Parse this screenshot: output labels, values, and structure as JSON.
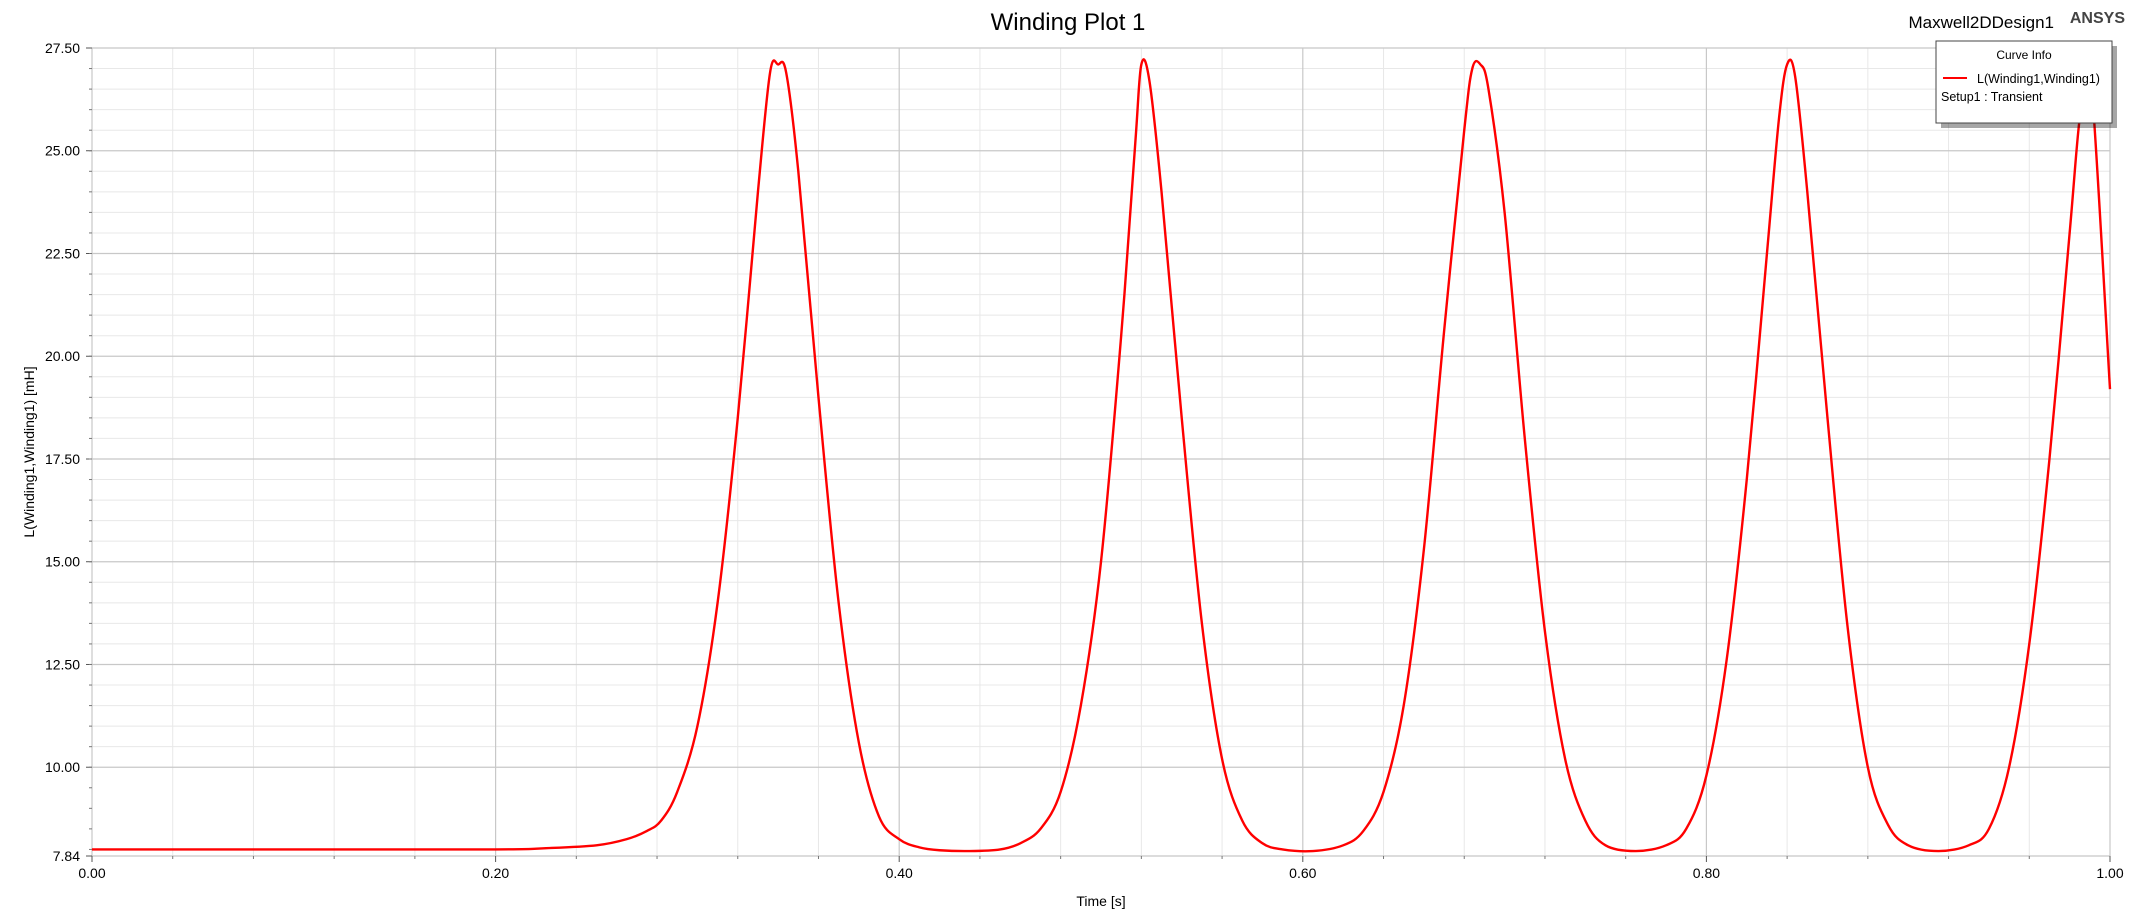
{
  "header": {
    "title": "Winding Plot 1",
    "design_name": "Maxwell2DDesign1",
    "brand": "ANSYS"
  },
  "legend": {
    "title": "Curve Info",
    "entries": [
      {
        "label": "L(Winding1,Winding1)",
        "sub": "Setup1 : Transient",
        "color": "#ff0000"
      }
    ]
  },
  "colors": {
    "curve": "#ff0000",
    "major_grid": "#c8c8c8",
    "minor_grid": "#e8e8e8",
    "plot_bg": "#ffffff"
  },
  "chart_data": {
    "type": "line",
    "title": "Winding Plot 1",
    "xlabel": "Time [s]",
    "ylabel": "L(Winding1,Winding1) [mH]",
    "xlim": [
      0.0,
      1.0
    ],
    "ylim": [
      7.84,
      27.5
    ],
    "xticks": [
      "0.00",
      "0.20",
      "0.40",
      "0.60",
      "0.80",
      "1.00"
    ],
    "yticks": [
      "7.84",
      "10.00",
      "12.50",
      "15.00",
      "17.50",
      "20.00",
      "22.50",
      "25.00",
      "27.50"
    ],
    "grid": true,
    "legend_position": "top-right",
    "series": [
      {
        "name": "L(Winding1,Winding1)",
        "x": [
          0.0,
          0.1,
          0.2,
          0.225,
          0.25,
          0.265,
          0.275,
          0.282,
          0.29,
          0.3,
          0.31,
          0.32,
          0.33,
          0.336,
          0.34,
          0.344,
          0.35,
          0.36,
          0.37,
          0.38,
          0.39,
          0.4,
          0.41,
          0.42,
          0.435,
          0.45,
          0.46,
          0.47,
          0.48,
          0.49,
          0.5,
          0.51,
          0.517,
          0.52,
          0.524,
          0.53,
          0.54,
          0.55,
          0.56,
          0.57,
          0.58,
          0.59,
          0.605,
          0.62,
          0.63,
          0.64,
          0.65,
          0.66,
          0.67,
          0.68,
          0.684,
          0.688,
          0.692,
          0.7,
          0.71,
          0.72,
          0.73,
          0.74,
          0.75,
          0.765,
          0.78,
          0.79,
          0.8,
          0.81,
          0.82,
          0.83,
          0.836,
          0.84,
          0.844,
          0.85,
          0.86,
          0.87,
          0.88,
          0.89,
          0.9,
          0.915,
          0.93,
          0.94,
          0.95,
          0.96,
          0.97,
          0.98,
          0.985,
          0.99,
          1.0
        ],
        "y": [
          8.0,
          8.0,
          8.0,
          8.03,
          8.1,
          8.25,
          8.45,
          8.7,
          9.4,
          11.0,
          14.0,
          18.5,
          24.0,
          26.9,
          27.1,
          26.9,
          24.5,
          19.0,
          14.0,
          10.6,
          8.8,
          8.25,
          8.05,
          7.98,
          7.96,
          8.0,
          8.15,
          8.5,
          9.4,
          11.5,
          15.0,
          20.5,
          25.2,
          27.1,
          26.7,
          24.0,
          18.5,
          13.5,
          10.2,
          8.7,
          8.15,
          8.0,
          7.96,
          8.1,
          8.45,
          9.4,
          11.5,
          15.3,
          20.6,
          25.5,
          27.0,
          27.1,
          26.5,
          23.5,
          18.0,
          13.3,
          10.2,
          8.7,
          8.1,
          7.96,
          8.1,
          8.5,
          9.8,
          12.6,
          17.0,
          22.5,
          25.8,
          27.1,
          26.8,
          24.0,
          18.5,
          13.4,
          10.0,
          8.6,
          8.1,
          7.96,
          8.1,
          8.5,
          10.0,
          13.0,
          17.5,
          23.0,
          25.8,
          27.1,
          19.2
        ]
      }
    ]
  }
}
